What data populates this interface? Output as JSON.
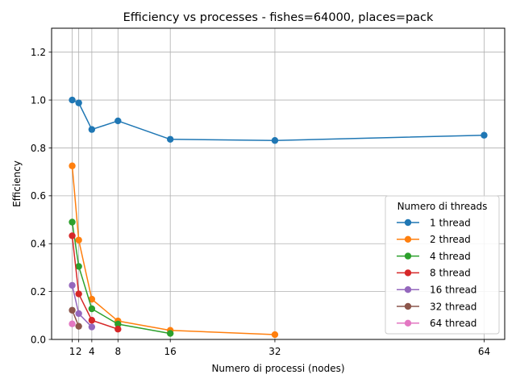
{
  "chart_data": {
    "type": "line",
    "title": "Efficiency vs processes - fishes=64000, places=pack",
    "xlabel": "Numero di processi (nodes)",
    "ylabel": "Efficiency",
    "xlim": [
      -2.15,
      67.15
    ],
    "ylim": [
      0,
      1.3
    ],
    "x_ticks": [
      1,
      2,
      4,
      8,
      16,
      32,
      64
    ],
    "y_ticks": [
      0.0,
      0.2,
      0.4,
      0.6,
      0.8,
      1.0,
      1.2
    ],
    "grid": true,
    "legend": {
      "title": "Numero di threads",
      "placement": "center-right"
    },
    "series": [
      {
        "name": "1 thread",
        "color": "#1f77b4",
        "x": [
          1,
          2,
          4,
          8,
          16,
          32,
          64
        ],
        "values": [
          1.0,
          0.988,
          0.877,
          0.913,
          0.836,
          0.831,
          0.853
        ]
      },
      {
        "name": "2 thread",
        "color": "#ff7f0e",
        "x": [
          1,
          2,
          4,
          8,
          16,
          32
        ],
        "values": [
          0.725,
          0.415,
          0.168,
          0.077,
          0.038,
          0.02
        ]
      },
      {
        "name": "4 thread",
        "color": "#2ca02c",
        "x": [
          1,
          2,
          4,
          8,
          16
        ],
        "values": [
          0.49,
          0.305,
          0.128,
          0.064,
          0.025
        ]
      },
      {
        "name": "8 thread",
        "color": "#d62728",
        "x": [
          1,
          2,
          4,
          8
        ],
        "values": [
          0.433,
          0.19,
          0.08,
          0.043
        ]
      },
      {
        "name": "16 thread",
        "color": "#9467bd",
        "x": [
          1,
          2,
          4
        ],
        "values": [
          0.226,
          0.108,
          0.052
        ]
      },
      {
        "name": "32 thread",
        "color": "#8c564b",
        "x": [
          1,
          2
        ],
        "values": [
          0.122,
          0.055
        ]
      },
      {
        "name": "64 thread",
        "color": "#e377c2",
        "x": [
          1
        ],
        "values": [
          0.065
        ]
      }
    ]
  }
}
